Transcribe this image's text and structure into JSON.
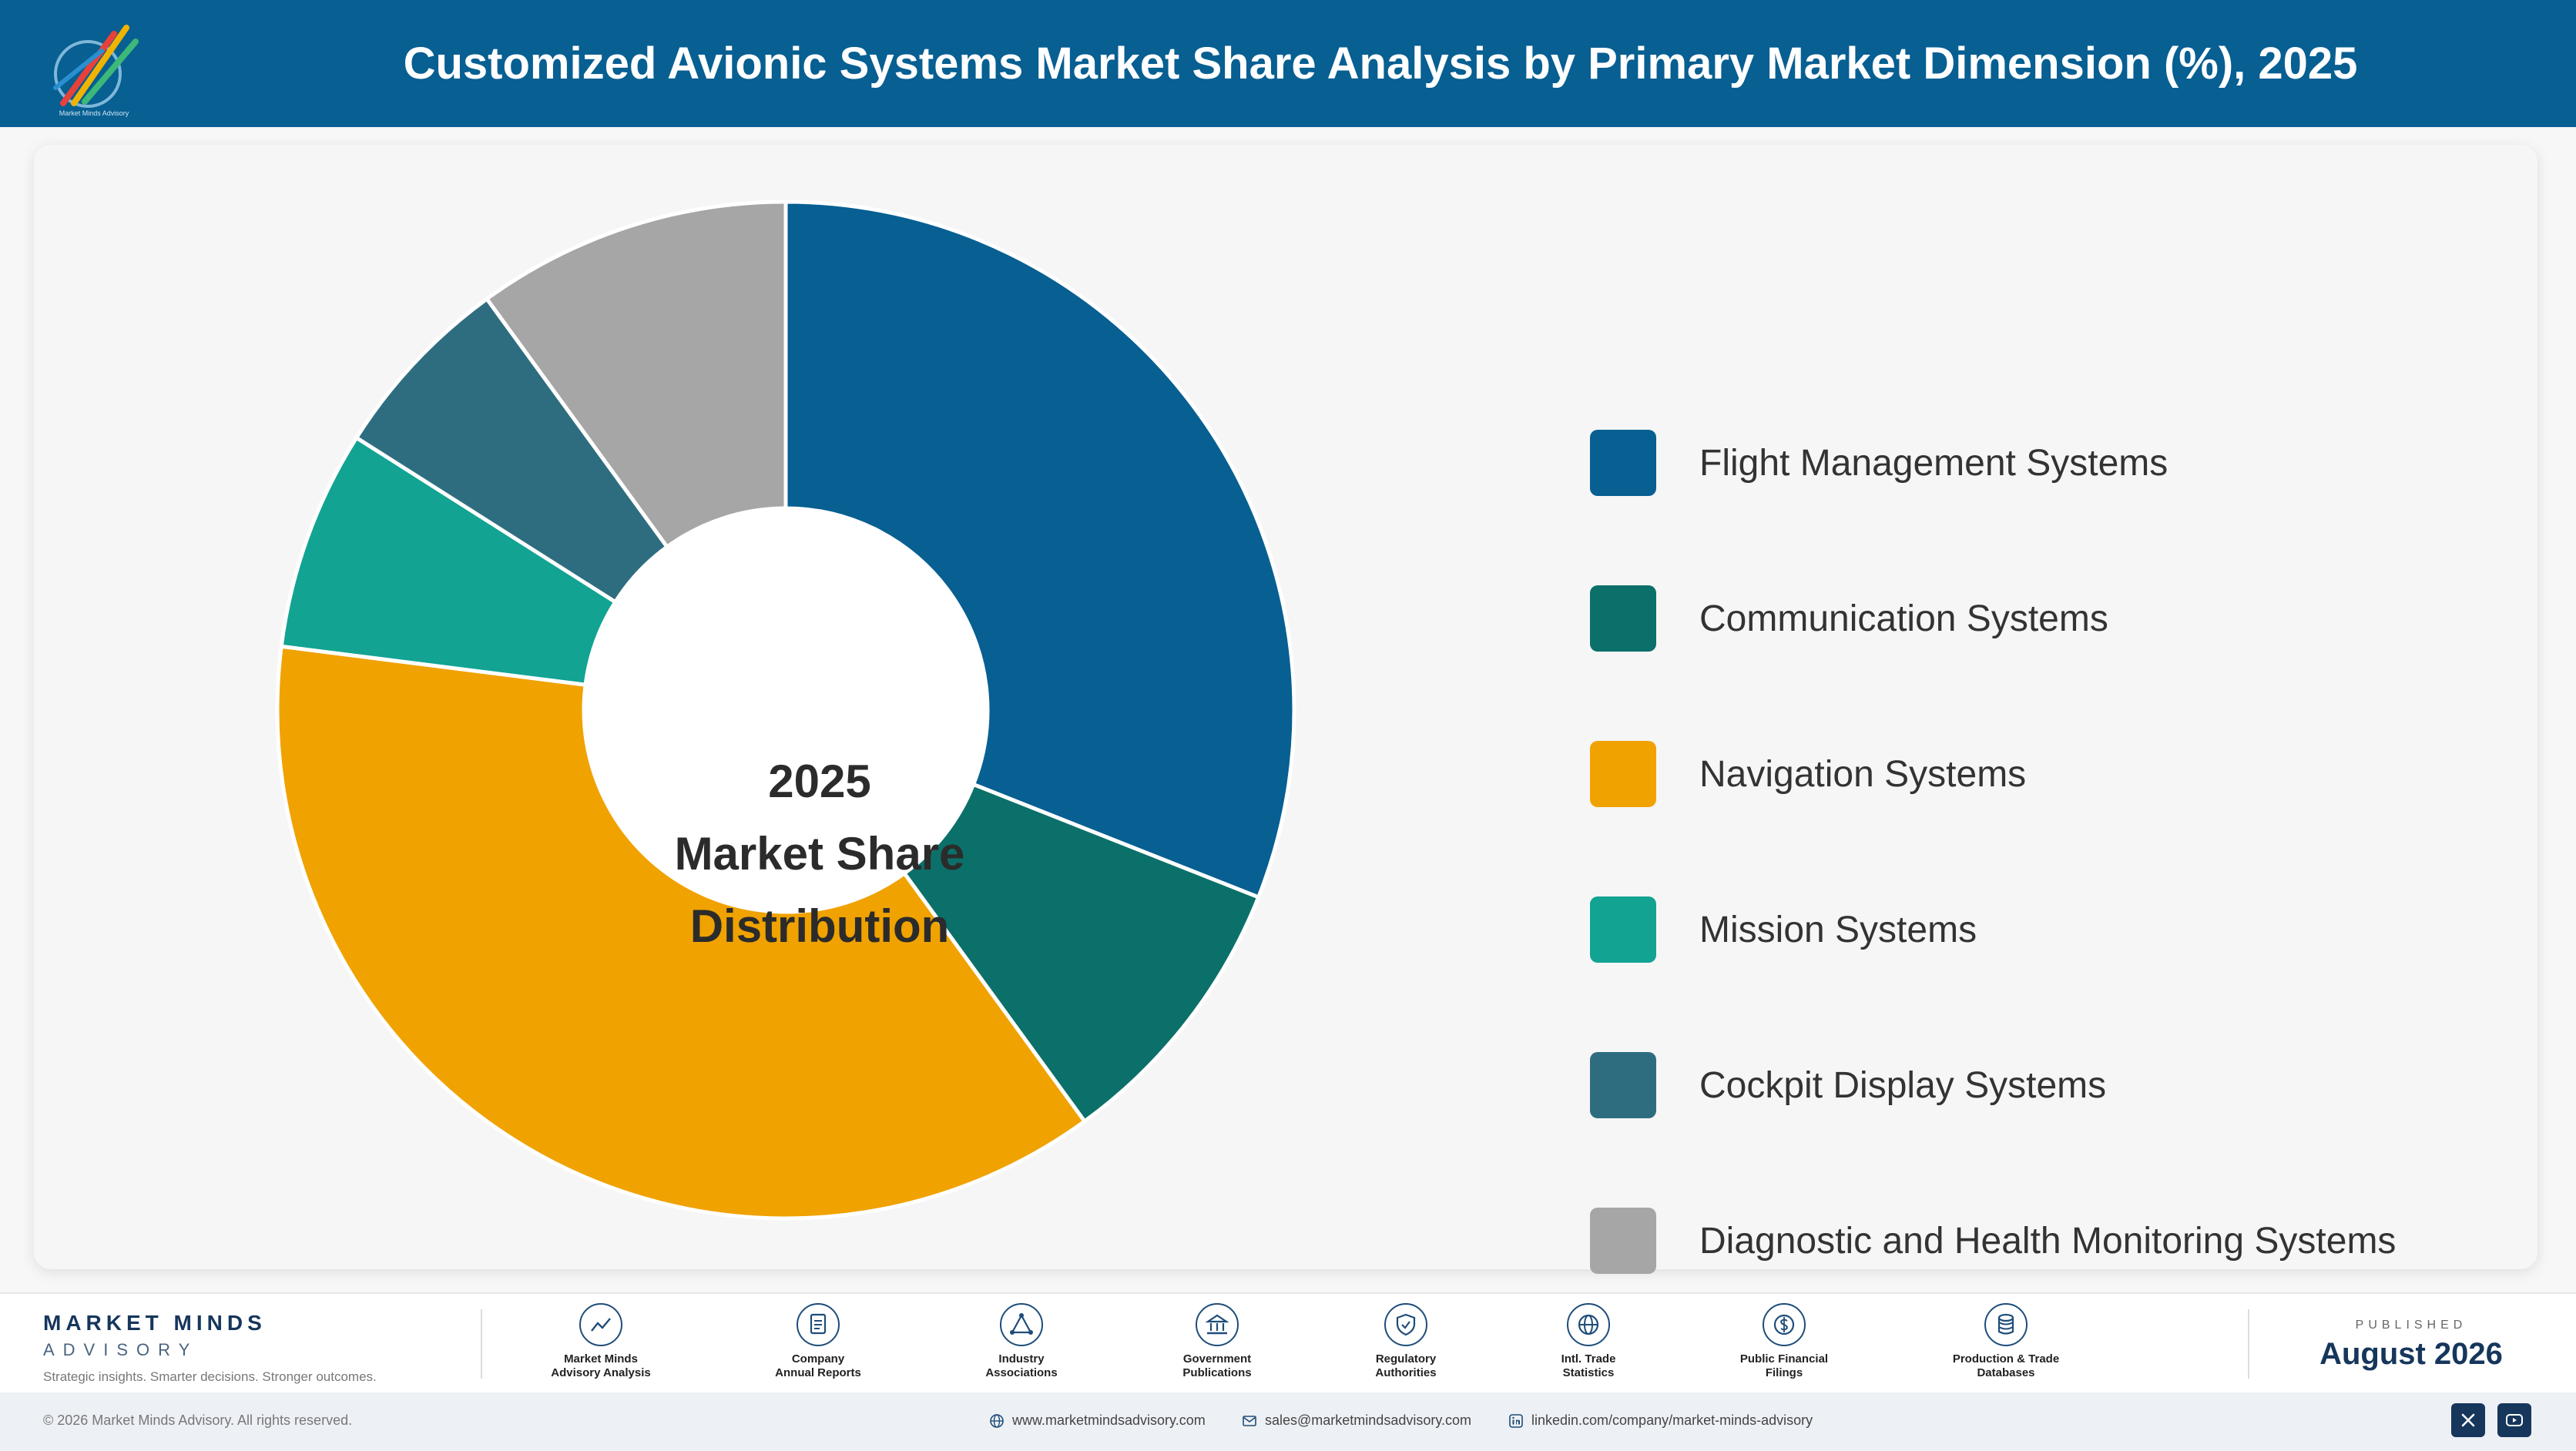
{
  "header": {
    "title": "Customized Avionic Systems Market Share Analysis by Primary Market Dimension (%), 2025",
    "logo_tagline": "Market Minds Advisory"
  },
  "chart_data": {
    "type": "pie",
    "variant": "donut",
    "title": "Customized Avionic Systems Market Share Analysis by Primary Market Dimension (%), 2025",
    "center_label": [
      "2025",
      "Market Share",
      "Distribution"
    ],
    "categories": [
      "Flight Management Systems",
      "Communication Systems",
      "Navigation Systems",
      "Mission Systems",
      "Cockpit Display Systems",
      "Diagnostic and Health Monitoring Systems"
    ],
    "values": [
      31,
      9,
      37,
      7,
      6,
      10
    ],
    "unit": "%",
    "colors": [
      "#075f92",
      "#0b7069",
      "#f0a200",
      "#12a392",
      "#2e6d80",
      "#a6a6a6"
    ],
    "legend_position": "right",
    "data_labels": false
  },
  "footer": {
    "brand_name": "MARKET MINDS",
    "brand_sub": "ADVISORY",
    "brand_tag": "Strategic insights. Smarter decisions. Stronger outcomes.",
    "sources": [
      {
        "line1": "Market Minds",
        "line2": "Advisory Analysis",
        "icon": "chart-line-icon"
      },
      {
        "line1": "Company",
        "line2": "Annual Reports",
        "icon": "document-icon"
      },
      {
        "line1": "Industry",
        "line2": "Associations",
        "icon": "network-icon"
      },
      {
        "line1": "Government",
        "line2": "Publications",
        "icon": "building-icon"
      },
      {
        "line1": "Regulatory",
        "line2": "Authorities",
        "icon": "shield-icon"
      },
      {
        "line1": "Intl. Trade",
        "line2": "Statistics",
        "icon": "globe-icon"
      },
      {
        "line1": "Public Financial",
        "line2": "Filings",
        "icon": "dollar-icon"
      },
      {
        "line1": "Production & Trade",
        "line2": "Databases",
        "icon": "database-icon"
      }
    ],
    "published_label": "PUBLISHED",
    "published_date": "August 2026",
    "copyright": "© 2026 Market Minds Advisory. All rights reserved.",
    "website": "www.marketmindsadvisory.com",
    "email": "sales@marketmindsadvisory.com",
    "linkedin": "linkedin.com/company/market-minds-advisory"
  }
}
